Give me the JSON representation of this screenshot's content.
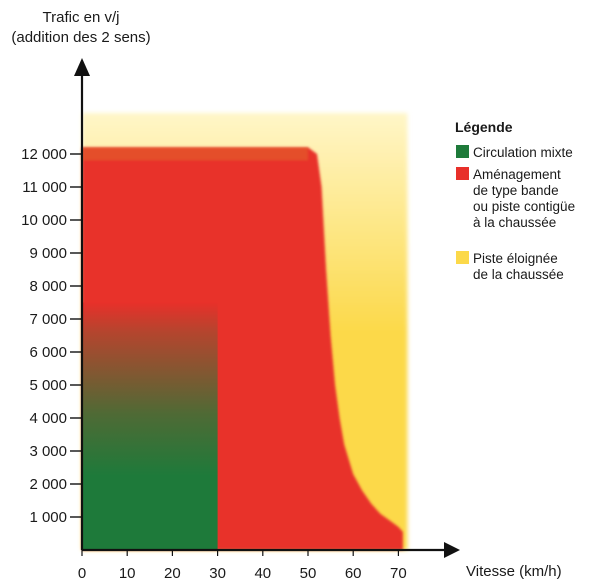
{
  "chart_data": {
    "type": "area",
    "title": "",
    "ylabel_line1": "Trafic en v/j",
    "ylabel_line2": "(addition des 2 sens)",
    "xlabel": "Vitesse (km/h)",
    "x_ticks": [
      0,
      10,
      20,
      30,
      40,
      50,
      60,
      70
    ],
    "y_ticks": [
      {
        "value": 1000,
        "label": "1 000"
      },
      {
        "value": 2000,
        "label": "2 000"
      },
      {
        "value": 3000,
        "label": "3 000"
      },
      {
        "value": 4000,
        "label": "4 000"
      },
      {
        "value": 5000,
        "label": "5 000"
      },
      {
        "value": 6000,
        "label": "6 000"
      },
      {
        "value": 7000,
        "label": "7 000"
      },
      {
        "value": 8000,
        "label": "8 000"
      },
      {
        "value": 9000,
        "label": "9 000"
      },
      {
        "value": 10000,
        "label": "10 000"
      },
      {
        "value": 11000,
        "label": "11 000"
      },
      {
        "value": 12000,
        "label": "12 000"
      }
    ],
    "xlim": [
      0,
      72
    ],
    "ylim": [
      0,
      13000
    ],
    "grid": false,
    "legend_position": "right",
    "legend": {
      "title": "Légende",
      "items": [
        {
          "key": "mixte",
          "lines": [
            "Circulation mixte"
          ],
          "color": "#1e7a3a"
        },
        {
          "key": "bande",
          "lines": [
            "Aménagement",
            "de type bande",
            "ou piste contigüe",
            "à la chaussée"
          ],
          "color": "#e8302a"
        },
        {
          "key": "piste",
          "lines": [
            "Piste éloignée",
            "de la chaussée"
          ],
          "color": "#fcd94a"
        }
      ]
    },
    "regions": {
      "piste_eloignee": {
        "x": [
          0,
          72
        ],
        "y": [
          0,
          13000
        ],
        "color": "#fcd94a"
      },
      "bande_ou_piste_contigue": {
        "x": [
          0,
          30,
          50,
          52,
          53,
          54,
          55,
          56,
          57,
          58,
          60,
          62,
          64,
          66,
          68,
          70,
          71
        ],
        "y_top": [
          12200,
          12200,
          12200,
          12000,
          11000,
          8500,
          6500,
          5000,
          4000,
          3200,
          2300,
          1800,
          1400,
          1100,
          900,
          700,
          550
        ],
        "color": "#e8302a"
      },
      "circulation_mixte": {
        "x": [
          0,
          30
        ],
        "y": [
          0,
          7500
        ],
        "color": "#1e7a3a"
      }
    }
  }
}
